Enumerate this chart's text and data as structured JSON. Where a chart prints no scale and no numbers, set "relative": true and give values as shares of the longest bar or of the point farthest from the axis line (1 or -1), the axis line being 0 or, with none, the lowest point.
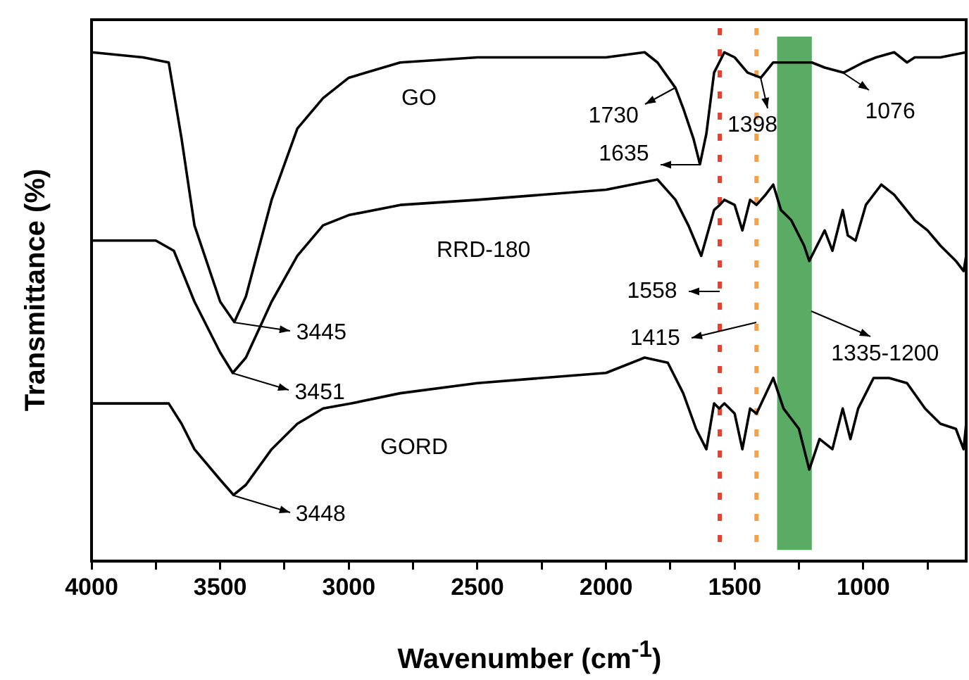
{
  "chart_data": {
    "type": "line",
    "relative": true,
    "xlabel": "Wavenumber (cm$^{-1}$)",
    "ylabel": "Transmittance (%)",
    "xlim": [
      4000,
      600
    ],
    "xticks": [
      4000,
      {
        "value": 3750,
        "label": null
      },
      3500,
      {
        "value": 3250,
        "label": null
      },
      3000,
      {
        "value": 2750,
        "label": null
      },
      2500,
      {
        "value": 2250,
        "label": null
      },
      2000,
      {
        "value": 1750,
        "label": null
      },
      1500,
      {
        "value": 1250,
        "label": null
      },
      1000,
      {
        "value": 750,
        "label": null
      }
    ],
    "tick_labels": "x",
    "grid": false,
    "legend": false,
    "marker": "none",
    "line_style": "solid",
    "series": [
      {
        "name": "GO",
        "color": "#000000",
        "x": [
          4000,
          3800,
          3700,
          3650,
          3600,
          3500,
          3445,
          3400,
          3300,
          3200,
          3100,
          3000,
          2800,
          2500,
          2000,
          1850,
          1800,
          1730,
          1700,
          1660,
          1635,
          1610,
          1580,
          1540,
          1500,
          1450,
          1398,
          1350,
          1300,
          1200,
          1150,
          1076,
          1000,
          950,
          880,
          830,
          800,
          700,
          600
        ],
        "values": [
          1.0,
          0.99,
          0.98,
          0.83,
          0.66,
          0.51,
          0.47,
          0.52,
          0.71,
          0.85,
          0.91,
          0.95,
          0.98,
          0.99,
          0.99,
          1.0,
          0.98,
          0.93,
          0.89,
          0.83,
          0.78,
          0.84,
          0.96,
          1.0,
          0.99,
          0.96,
          0.95,
          0.98,
          0.98,
          0.98,
          0.97,
          0.96,
          0.98,
          0.99,
          1.0,
          0.98,
          0.99,
          0.99,
          1.0
        ]
      },
      {
        "name": "RRD-180",
        "color": "#000000",
        "x": [
          4000,
          3750,
          3680,
          3600,
          3500,
          3451,
          3400,
          3300,
          3200,
          3100,
          3000,
          2800,
          2500,
          2000,
          1800,
          1730,
          1680,
          1630,
          1580,
          1558,
          1540,
          1500,
          1470,
          1440,
          1415,
          1380,
          1350,
          1320,
          1280,
          1230,
          1210,
          1180,
          1150,
          1120,
          1080,
          1060,
          1030,
          990,
          930,
          880,
          800,
          750,
          700,
          640,
          610,
          600
        ],
        "values": [
          0.63,
          0.63,
          0.61,
          0.51,
          0.41,
          0.37,
          0.4,
          0.51,
          0.6,
          0.66,
          0.68,
          0.7,
          0.71,
          0.73,
          0.75,
          0.71,
          0.66,
          0.6,
          0.69,
          0.7,
          0.71,
          0.7,
          0.65,
          0.71,
          0.7,
          0.72,
          0.74,
          0.69,
          0.67,
          0.62,
          0.59,
          0.62,
          0.65,
          0.61,
          0.69,
          0.64,
          0.63,
          0.7,
          0.74,
          0.72,
          0.67,
          0.65,
          0.62,
          0.59,
          0.57,
          0.6
        ]
      },
      {
        "name": "GORD",
        "color": "#000000",
        "x": [
          4000,
          3700,
          3650,
          3600,
          3500,
          3448,
          3400,
          3300,
          3200,
          3100,
          2990,
          2800,
          2500,
          2000,
          1850,
          1760,
          1700,
          1650,
          1610,
          1580,
          1560,
          1540,
          1500,
          1470,
          1440,
          1415,
          1350,
          1310,
          1250,
          1210,
          1170,
          1120,
          1080,
          1050,
          1020,
          960,
          900,
          830,
          760,
          700,
          640,
          610,
          600
        ],
        "values": [
          0.31,
          0.31,
          0.27,
          0.22,
          0.16,
          0.13,
          0.15,
          0.22,
          0.27,
          0.3,
          0.31,
          0.33,
          0.35,
          0.37,
          0.4,
          0.39,
          0.33,
          0.26,
          0.22,
          0.31,
          0.3,
          0.31,
          0.29,
          0.22,
          0.3,
          0.29,
          0.36,
          0.3,
          0.26,
          0.18,
          0.24,
          0.22,
          0.3,
          0.24,
          0.3,
          0.36,
          0.36,
          0.35,
          0.3,
          0.27,
          0.26,
          0.22,
          0.27
        ]
      }
    ],
    "ref_lines": [
      {
        "axis": "x",
        "value": 1558,
        "color": "#e8402a",
        "line_style": "dotted"
      },
      {
        "axis": "x",
        "value": 1415,
        "color": "#f5a04a",
        "line_style": "dotted"
      }
    ],
    "bands": [
      {
        "axis": "x",
        "from": 1335,
        "to": 1200,
        "color": "#5aab64"
      }
    ],
    "annotations": [
      {
        "text": "3445",
        "x": 3445,
        "y": 0.47
      },
      {
        "text": "3451",
        "x": 3451,
        "y": 0.37
      },
      {
        "text": "3448",
        "x": 3448,
        "y": 0.13
      },
      {
        "text": "1730",
        "x": 1730,
        "y": 0.93
      },
      {
        "text": "1635",
        "x": 1635,
        "y": 0.78
      },
      {
        "text": "1398",
        "x": 1398,
        "y": 0.95
      },
      {
        "text": "1076",
        "x": 1076,
        "y": 0.96
      },
      {
        "text": "1558",
        "x": 1558,
        "y": 0.53
      },
      {
        "text": "1415",
        "x": 1415,
        "y": 0.47
      },
      {
        "text": "1335-1200",
        "x": 1200,
        "y": 0.49
      }
    ]
  }
}
